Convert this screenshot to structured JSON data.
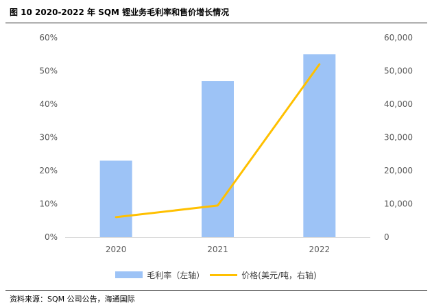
{
  "figure": {
    "title": "图 10 2020-2022 年 SQM 锂业务毛利率和售价增长情况",
    "source": "资料来源：SQM 公司公告，海通国际"
  },
  "colors": {
    "bar": "#9DC3F6",
    "line": "#FFC000",
    "axis_text": "#595959",
    "axis_line": "#D9D9D9"
  },
  "chart_data": {
    "type": "bar",
    "title": "2020-2022 年 SQM 锂业务毛利率和售价增长情况",
    "categories": [
      "2020",
      "2021",
      "2022"
    ],
    "series": [
      {
        "name": "毛利率（左轴）",
        "type": "bar",
        "axis": "left",
        "values": [
          0.23,
          0.47,
          0.55
        ]
      },
      {
        "name": "价格(美元/吨，右轴)",
        "type": "line",
        "axis": "right",
        "values": [
          6000,
          9500,
          52000
        ]
      }
    ],
    "y_left": {
      "ylim": [
        0,
        0.6
      ],
      "ticks": [
        0,
        0.1,
        0.2,
        0.3,
        0.4,
        0.5,
        0.6
      ],
      "tick_labels": [
        "0%",
        "10%",
        "20%",
        "30%",
        "40%",
        "50%",
        "60%"
      ]
    },
    "y_right": {
      "ylim": [
        0,
        60000
      ],
      "ticks": [
        0,
        10000,
        20000,
        30000,
        40000,
        50000,
        60000
      ],
      "tick_labels": [
        "0",
        "10,000",
        "20,000",
        "30,000",
        "40,000",
        "50,000",
        "60,000"
      ]
    },
    "xlabel": "",
    "ylabel": "",
    "legend_position": "bottom",
    "grid": false
  }
}
